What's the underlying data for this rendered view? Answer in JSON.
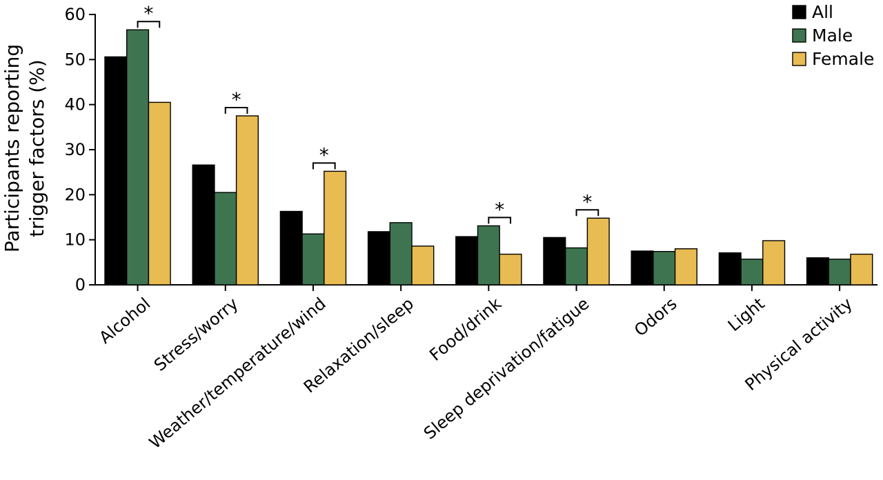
{
  "chart_data": {
    "type": "bar",
    "title": "",
    "xlabel": "",
    "ylabel_lines": [
      "Participants reporting",
      "trigger factors (%)"
    ],
    "ylim": [
      0,
      60
    ],
    "yticks": [
      0,
      10,
      20,
      30,
      40,
      50,
      60
    ],
    "categories": [
      "Alcohol",
      "Stress/worry",
      "Weather/temperature/wind",
      "Relaxation/sleep",
      "Food/drink",
      "Sleep deprivation/fatigue",
      "Odors",
      "Light",
      "Physical activity"
    ],
    "series": [
      {
        "name": "All",
        "color": "#000000",
        "values": [
          50.6,
          26.6,
          16.3,
          11.8,
          10.7,
          10.5,
          7.5,
          7.1,
          6.0
        ]
      },
      {
        "name": "Male",
        "color": "#3e7550",
        "values": [
          56.6,
          20.5,
          11.3,
          13.8,
          13.1,
          8.2,
          7.4,
          5.7,
          5.7
        ]
      },
      {
        "name": "Female",
        "color": "#e8bc52",
        "values": [
          40.5,
          37.5,
          25.2,
          8.6,
          6.8,
          14.8,
          8.0,
          9.8,
          6.8
        ]
      }
    ],
    "significance": [
      {
        "category": "Alcohol",
        "label": "*"
      },
      {
        "category": "Stress/worry",
        "label": "*"
      },
      {
        "category": "Weather/temperature/wind",
        "label": "*"
      },
      {
        "category": "Food/drink",
        "label": "*"
      },
      {
        "category": "Sleep deprivation/fatigue",
        "label": "*"
      }
    ],
    "legend_position": "top-right",
    "grid": false
  }
}
